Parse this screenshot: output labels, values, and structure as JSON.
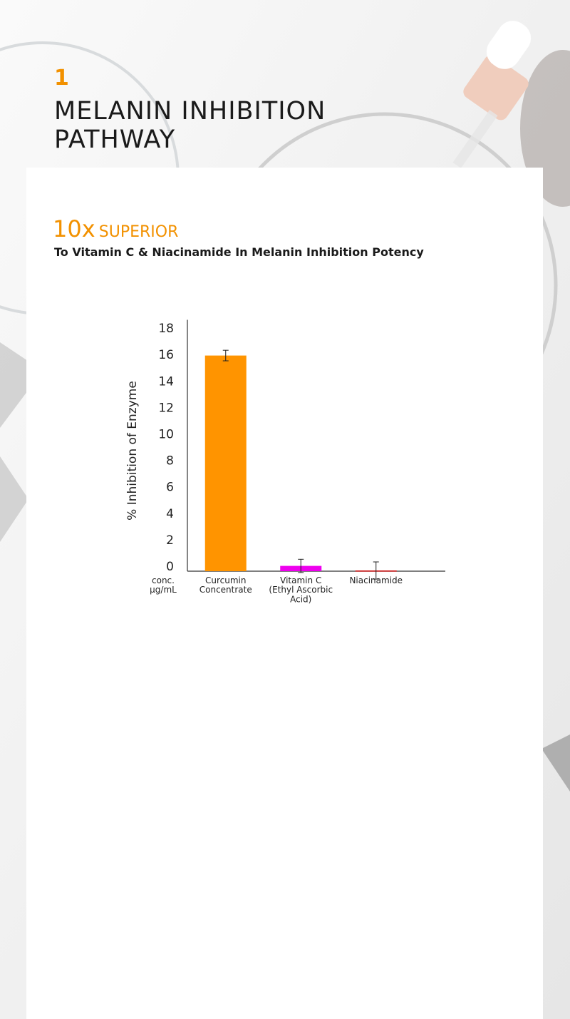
{
  "header": {
    "number": "1",
    "title": "MELANIN INHIBITION\nPATHWAY"
  },
  "headline": {
    "emphasis": "10x",
    "text": "SUPERIOR",
    "subtitle": "To Vitamin C & Niacinamide In Melanin Inhibition Potency"
  },
  "chart_data": {
    "type": "bar",
    "y_label": "% Inhibition of Enzyme",
    "x_label": "conc.\nµg/mL",
    "categories": [
      "Curcumin\nConcentrate",
      "Vitamin C\n(Ethyl Ascorbic\nAcid)",
      "Niacinamide"
    ],
    "values": [
      16.3,
      0.4,
      0.05
    ],
    "errors": [
      0.4,
      0.5,
      0.65
    ],
    "colors": [
      "#ff9400",
      "#ee00ee",
      "#cc0000"
    ],
    "ylim": [
      0,
      19
    ],
    "yticks": [
      0,
      2,
      4,
      6,
      8,
      10,
      12,
      14,
      16,
      18
    ]
  }
}
